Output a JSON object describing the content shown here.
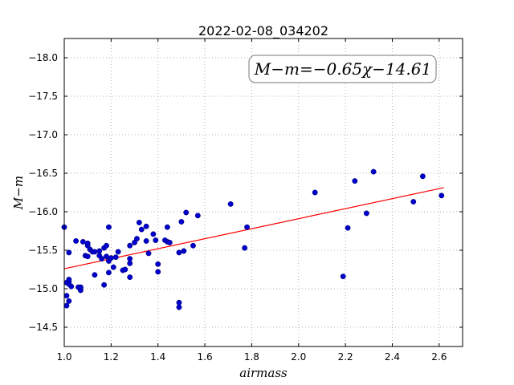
{
  "chart_data": {
    "type": "scatter",
    "title": "2022-02-08_034202",
    "xlabel": "airmass",
    "ylabel": "M−m",
    "xlim": [
      1.0,
      2.7
    ],
    "ylim": [
      -18.25,
      -14.25
    ],
    "ylim_display": "inverted (top = -14.25, bottom = -18.25)",
    "x_ticks": [
      1.0,
      1.2,
      1.4,
      1.6,
      1.8,
      2.0,
      2.2,
      2.4,
      2.6
    ],
    "x_tick_labels": [
      "1.0",
      "1.2",
      "1.4",
      "1.6",
      "1.8",
      "2.0",
      "2.2",
      "2.4",
      "2.6"
    ],
    "y_ticks": [
      -14.5,
      -15.0,
      -15.5,
      -16.0,
      -16.5,
      -17.0,
      -17.5,
      -18.0
    ],
    "y_tick_labels": [
      "−14.5",
      "−15.0",
      "−15.5",
      "−16.0",
      "−16.5",
      "−17.0",
      "−17.5",
      "−18.0"
    ],
    "grid": true,
    "annotation": "M−m=−0.65χ−14.61",
    "annotation_position": "top-right",
    "point_color": "#0000cc",
    "fit_color": "#ff0000",
    "fit": {
      "slope": -0.65,
      "intercept": -14.61,
      "x_range": [
        1.0,
        2.62
      ]
    },
    "points": {
      "x": [
        1.0,
        1.01,
        1.01,
        1.02,
        1.02,
        1.02,
        1.03,
        1.01,
        1.02,
        1.02,
        1.05,
        1.06,
        1.07,
        1.07,
        1.08,
        1.09,
        1.1,
        1.1,
        1.1,
        1.11,
        1.12,
        1.13,
        1.13,
        1.15,
        1.15,
        1.16,
        1.17,
        1.17,
        1.18,
        1.18,
        1.19,
        1.19,
        1.19,
        1.2,
        1.21,
        1.22,
        1.23,
        1.25,
        1.26,
        1.28,
        1.28,
        1.28,
        1.28,
        1.3,
        1.31,
        1.32,
        1.33,
        1.35,
        1.35,
        1.36,
        1.38,
        1.39,
        1.4,
        1.4,
        1.43,
        1.44,
        1.44,
        1.45,
        1.49,
        1.49,
        1.49,
        1.5,
        1.51,
        1.52,
        1.55,
        1.57,
        1.71,
        1.77,
        1.78,
        2.07,
        2.19,
        2.21,
        2.24,
        2.29,
        2.32,
        2.49,
        2.53,
        2.61
      ],
      "y": [
        -15.8,
        -14.78,
        -14.91,
        -14.84,
        -15.09,
        -15.47,
        -15.03,
        -15.08,
        -15.06,
        -15.12,
        -15.62,
        -15.02,
        -14.98,
        -15.02,
        -15.61,
        -15.43,
        -15.42,
        -15.56,
        -15.59,
        -15.51,
        -15.48,
        -15.18,
        -15.48,
        -15.49,
        -15.43,
        -15.39,
        -15.05,
        -15.53,
        -15.56,
        -15.42,
        -15.21,
        -15.36,
        -15.8,
        -15.4,
        -15.28,
        -15.41,
        -15.48,
        -15.24,
        -15.25,
        -15.39,
        -15.33,
        -15.56,
        -15.15,
        -15.6,
        -15.65,
        -15.86,
        -15.77,
        -15.62,
        -15.81,
        -15.46,
        -15.71,
        -15.63,
        -15.22,
        -15.32,
        -15.63,
        -15.8,
        -15.61,
        -15.6,
        -14.76,
        -14.82,
        -15.47,
        -15.87,
        -15.49,
        -15.99,
        -15.56,
        -15.95,
        -16.1,
        -15.53,
        -15.8,
        -16.25,
        -15.16,
        -15.79,
        -16.4,
        -15.98,
        -16.52,
        -16.13,
        -16.46,
        -16.21
      ]
    }
  }
}
